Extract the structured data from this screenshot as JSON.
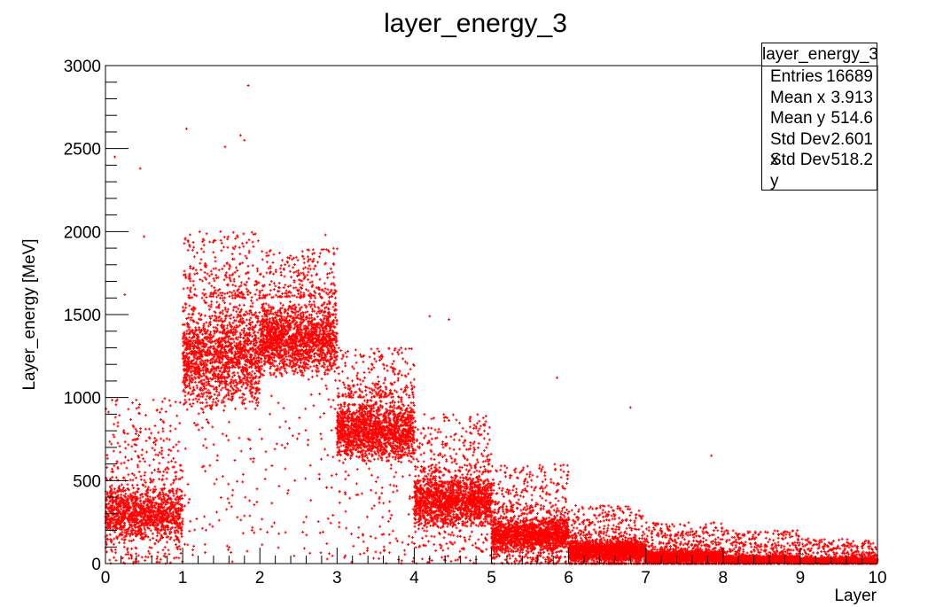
{
  "chart_data": {
    "type": "scatter",
    "title": "layer_energy_3",
    "xlabel": "Layer",
    "ylabel": "Layer_energy [MeV]",
    "xlim": [
      0,
      10
    ],
    "ylim": [
      0,
      3000
    ],
    "x_ticks": [
      "0",
      "1",
      "2",
      "3",
      "4",
      "5",
      "6",
      "7",
      "8",
      "9",
      "10"
    ],
    "y_ticks": [
      "0",
      "500",
      "1000",
      "1500",
      "2000",
      "2500",
      "3000"
    ],
    "grid": false,
    "marker_color": "#ff0000",
    "stats_box": {
      "title": "layer_energy_3",
      "placement": "top-right",
      "rows": [
        {
          "label": "Entries",
          "value": "16689"
        },
        {
          "label": "Mean x",
          "value": "3.913"
        },
        {
          "label": "Mean y",
          "value": "514.6"
        },
        {
          "label": "Std Dev x",
          "value": "2.601"
        },
        {
          "label": "Std Dev y",
          "value": "518.2"
        }
      ]
    },
    "layer_bands": [
      {
        "x_range": [
          0,
          1
        ],
        "core_y": [
          100,
          500
        ],
        "spread_y_max": 1000,
        "count": 1500
      },
      {
        "x_range": [
          1,
          2
        ],
        "core_y": [
          900,
          1600
        ],
        "spread_y_max": 2000,
        "count": 1900
      },
      {
        "x_range": [
          2,
          3
        ],
        "core_y": [
          1100,
          1600
        ],
        "spread_y_max": 1900,
        "count": 1900
      },
      {
        "x_range": [
          3,
          4
        ],
        "core_y": [
          600,
          1000
        ],
        "spread_y_max": 1300,
        "count": 1900
      },
      {
        "x_range": [
          4,
          5
        ],
        "core_y": [
          200,
          550
        ],
        "spread_y_max": 900,
        "count": 1900
      },
      {
        "x_range": [
          5,
          6
        ],
        "core_y": [
          50,
          300
        ],
        "spread_y_max": 600,
        "count": 1900
      },
      {
        "x_range": [
          6,
          7
        ],
        "core_y": [
          0,
          150
        ],
        "spread_y_max": 350,
        "count": 1900
      },
      {
        "x_range": [
          7,
          8
        ],
        "core_y": [
          0,
          80
        ],
        "spread_y_max": 250,
        "count": 1900
      },
      {
        "x_range": [
          8,
          9
        ],
        "core_y": [
          0,
          50
        ],
        "spread_y_max": 200,
        "count": 1900
      },
      {
        "x_range": [
          9,
          10
        ],
        "core_y": [
          0,
          35
        ],
        "spread_y_max": 150,
        "count": 1900
      }
    ],
    "outliers": [
      {
        "x": 1.85,
        "y": 2880
      },
      {
        "x": 1.05,
        "y": 2620
      },
      {
        "x": 1.75,
        "y": 2580
      },
      {
        "x": 1.8,
        "y": 2550
      },
      {
        "x": 1.55,
        "y": 2510
      },
      {
        "x": 0.45,
        "y": 2380
      },
      {
        "x": 0.12,
        "y": 2450
      },
      {
        "x": 0.5,
        "y": 1970
      },
      {
        "x": 2.85,
        "y": 1980
      },
      {
        "x": 4.2,
        "y": 1490
      },
      {
        "x": 4.45,
        "y": 1470
      },
      {
        "x": 6.8,
        "y": 940
      },
      {
        "x": 7.85,
        "y": 650
      },
      {
        "x": 5.85,
        "y": 1120
      },
      {
        "x": 0.25,
        "y": 1620
      }
    ]
  }
}
